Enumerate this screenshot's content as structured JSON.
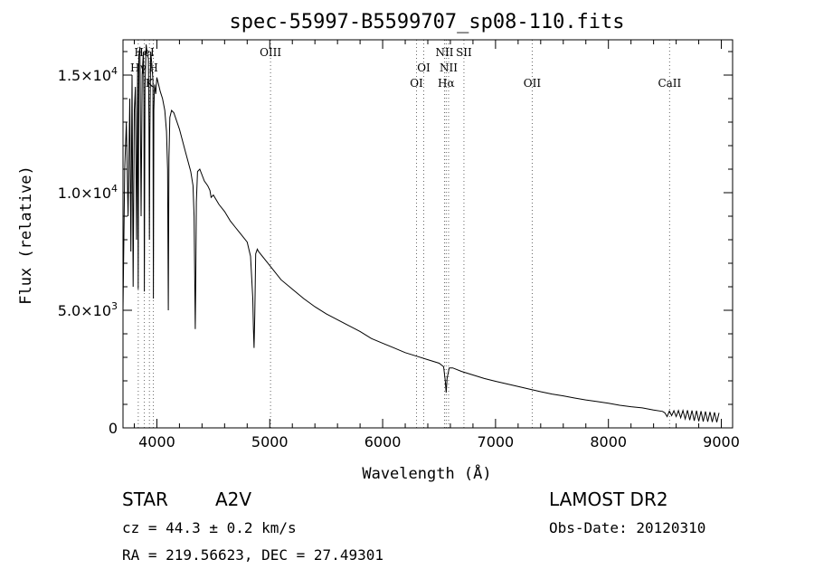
{
  "chart_data": {
    "type": "line",
    "title": "spec-55997-B5599707_sp08-110.fits",
    "xlabel": "Wavelength (Å)",
    "ylabel": "Flux (relative)",
    "xlim": [
      3700,
      9100
    ],
    "ylim": [
      0,
      16500
    ],
    "x_ticks": [
      4000,
      5000,
      6000,
      7000,
      8000,
      9000
    ],
    "x_tick_labels": [
      "4000",
      "5000",
      "6000",
      "7000",
      "8000",
      "9000"
    ],
    "y_ticks": [
      0,
      5000,
      10000,
      15000
    ],
    "y_tick_labels": [
      {
        "mant": "0",
        "exp": ""
      },
      {
        "mant": "5.0×10",
        "exp": "3"
      },
      {
        "mant": "1.0×10",
        "exp": "4"
      },
      {
        "mant": "1.5×10",
        "exp": "4"
      }
    ],
    "grid": false,
    "spectral_lines": [
      {
        "label": "HeI",
        "wavelength": 3889,
        "row": 0
      },
      {
        "label": "Hγ",
        "wavelength": 3835,
        "row": 1
      },
      {
        "label": "H",
        "wavelength": 3969,
        "row": 1
      },
      {
        "label": "K",
        "wavelength": 3934,
        "row": 2
      },
      {
        "label": "OIII",
        "wavelength": 5007,
        "row": 0
      },
      {
        "label": "OI",
        "wavelength": 6300,
        "row": 2
      },
      {
        "label": "OI",
        "wavelength": 6364,
        "row": 1
      },
      {
        "label": "NII",
        "wavelength": 6548,
        "row": 0
      },
      {
        "label": "NII",
        "wavelength": 6584,
        "row": 1
      },
      {
        "label": "Hα",
        "wavelength": 6563,
        "row": 2
      },
      {
        "label": "SII",
        "wavelength": 6720,
        "row": 0
      },
      {
        "label": "OII",
        "wavelength": 7325,
        "row": 2
      },
      {
        "label": "CaII",
        "wavelength": 8542,
        "row": 2
      }
    ],
    "series": [
      {
        "x": [
          3700,
          3715,
          3730,
          3745,
          3760,
          3770,
          3780,
          3790,
          3800,
          3810,
          3820,
          3830,
          3835,
          3840,
          3850,
          3860,
          3870,
          3880,
          3885,
          3889,
          3895,
          3905,
          3915,
          3925,
          3930,
          3934,
          3938,
          3945,
          3955,
          3965,
          3969,
          3973,
          3980,
          3990,
          4000,
          4010,
          4030,
          4050,
          4070,
          4085,
          4095,
          4101,
          4107,
          4115,
          4130,
          4150,
          4200,
          4250,
          4300,
          4320,
          4330,
          4340,
          4345,
          4350,
          4360,
          4380,
          4420,
          4450,
          4470,
          4480,
          4500,
          4550,
          4600,
          4650,
          4700,
          4750,
          4800,
          4830,
          4850,
          4855,
          4861,
          4867,
          4875,
          4890,
          4900,
          5000,
          5100,
          5200,
          5300,
          5400,
          5500,
          5600,
          5700,
          5800,
          5900,
          6000,
          6100,
          6200,
          6300,
          6400,
          6500,
          6540,
          6555,
          6563,
          6571,
          6590,
          6620,
          6700,
          6800,
          6900,
          7000,
          7100,
          7200,
          7300,
          7400,
          7500,
          7600,
          7700,
          7800,
          7900,
          8000,
          8100,
          8200,
          8300,
          8400,
          8480,
          8500,
          8520,
          8540,
          8560,
          8580,
          8600,
          8620,
          8640,
          8660,
          8680,
          8700,
          8720,
          8740,
          8760,
          8780,
          8800,
          8820,
          8840,
          8860,
          8880,
          8900,
          8920,
          8940,
          8960,
          8980
        ],
        "y": [
          5000,
          11000,
          13000,
          9000,
          14000,
          7500,
          15000,
          6000,
          13500,
          14500,
          8000,
          15500,
          5900,
          15800,
          16200,
          9000,
          15000,
          16000,
          14000,
          5800,
          14500,
          16300,
          15900,
          15700,
          13000,
          8000,
          12500,
          16000,
          15500,
          14800,
          5500,
          13500,
          14600,
          14200,
          14900,
          14700,
          14300,
          14000,
          13500,
          12600,
          11000,
          5000,
          11500,
          13200,
          13500,
          13400,
          12700,
          11800,
          10900,
          10300,
          9000,
          4200,
          6500,
          9600,
          10900,
          11000,
          10500,
          10300,
          10100,
          9800,
          9900,
          9500,
          9200,
          8800,
          8500,
          8200,
          7900,
          7300,
          5500,
          4200,
          3400,
          4800,
          7400,
          7600,
          7500,
          6900,
          6300,
          5900,
          5500,
          5150,
          4850,
          4600,
          4350,
          4100,
          3800,
          3600,
          3400,
          3200,
          3050,
          2900,
          2750,
          2600,
          2000,
          1500,
          2100,
          2550,
          2550,
          2400,
          2250,
          2100,
          1980,
          1870,
          1760,
          1650,
          1540,
          1440,
          1360,
          1270,
          1190,
          1120,
          1050,
          960,
          900,
          850,
          760,
          700,
          640,
          480,
          720,
          520,
          730,
          480,
          740,
          430,
          740,
          380,
          750,
          330,
          740,
          300,
          730,
          280,
          710,
          270,
          700,
          260,
          680,
          250,
          660,
          240,
          640
        ]
      }
    ]
  },
  "footer": {
    "object_type": "STAR",
    "spectral_class": "A2V",
    "survey": "LAMOST DR2",
    "cz": "cz = 44.3 ± 0.2 km/s",
    "obs_date": "Obs-Date: 20120310",
    "coords": "RA = 219.56623, DEC =  27.49301"
  }
}
